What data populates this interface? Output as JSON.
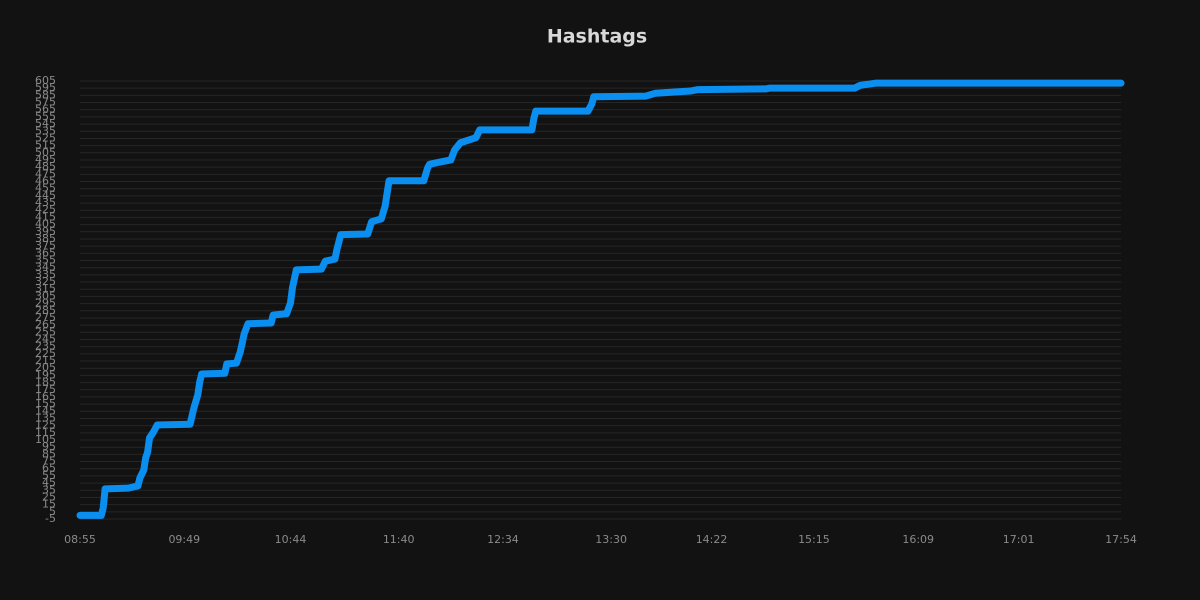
{
  "chart_data": {
    "type": "line",
    "title": "Hashtags",
    "x": [
      "08:55",
      "09:06",
      "09:07",
      "09:08",
      "09:20",
      "09:25",
      "09:26",
      "09:28",
      "09:29",
      "09:30",
      "09:31",
      "09:33",
      "09:35",
      "09:52",
      "09:54",
      "09:56",
      "09:57",
      "09:58",
      "10:10",
      "10:11",
      "10:16",
      "10:18",
      "10:19",
      "10:20",
      "10:22",
      "10:34",
      "10:35",
      "10:42",
      "10:44",
      "10:45",
      "10:47",
      "11:00",
      "11:02",
      "11:07",
      "11:08",
      "11:10",
      "11:24",
      "11:26",
      "11:31",
      "11:33",
      "11:35",
      "11:53",
      "11:55",
      "11:56",
      "12:01",
      "12:07",
      "12:09",
      "12:12",
      "12:20",
      "12:22",
      "12:49",
      "12:50",
      "12:51",
      "13:18",
      "13:20",
      "13:21",
      "13:48",
      "13:53",
      "14:11",
      "14:15",
      "14:50",
      "14:52",
      "15:36",
      "15:39",
      "15:47",
      "17:54"
    ],
    "series": [
      {
        "name": "Hashtags",
        "color": "#0a8ff0",
        "values": [
          0,
          0,
          10,
          37,
          38,
          41,
          52,
          63,
          80,
          88,
          108,
          116,
          126,
          127,
          150,
          168,
          186,
          197,
          198,
          211,
          212,
          228,
          240,
          253,
          267,
          268,
          279,
          281,
          296,
          317,
          342,
          343,
          354,
          357,
          370,
          391,
          392,
          409,
          413,
          431,
          466,
          466,
          484,
          489,
          492,
          495,
          509,
          519,
          526,
          537,
          537,
          553,
          563,
          563,
          573,
          583,
          584,
          588,
          591,
          593,
          594,
          595,
          595,
          599,
          602,
          602
        ]
      }
    ],
    "xlim": [
      "08:55",
      "17:54"
    ],
    "xticks": [
      "08:55",
      "09:49",
      "10:44",
      "11:40",
      "12:34",
      "13:30",
      "14:22",
      "15:15",
      "16:09",
      "17:01",
      "17:54"
    ],
    "ylim": [
      -5,
      605
    ],
    "yticks": [
      -5,
      5,
      15,
      25,
      35,
      45,
      55,
      65,
      75,
      85,
      95,
      105,
      115,
      125,
      135,
      145,
      155,
      165,
      175,
      185,
      195,
      205,
      215,
      225,
      235,
      245,
      255,
      265,
      275,
      285,
      295,
      305,
      315,
      325,
      335,
      345,
      355,
      365,
      375,
      385,
      395,
      405,
      415,
      425,
      435,
      445,
      455,
      465,
      475,
      485,
      495,
      505,
      515,
      525,
      535,
      545,
      555,
      565,
      575,
      585,
      595,
      605
    ],
    "grid": true
  }
}
